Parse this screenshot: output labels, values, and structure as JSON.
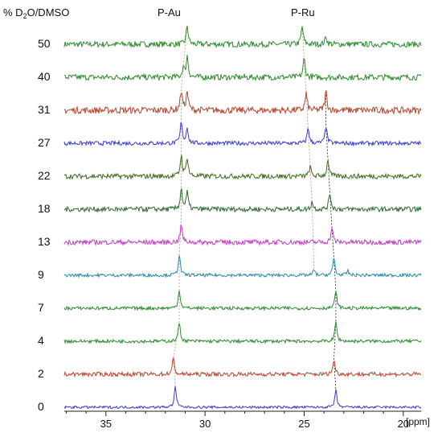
{
  "chart_data": {
    "type": "line",
    "title": "",
    "legend_header": {
      "prefix": "% D",
      "sub": "2",
      "suffix": "O/DMSO"
    },
    "xlabel": "[ppm]",
    "xlim": [
      37.1,
      19.1
    ],
    "x_ticks": [
      35,
      30,
      25,
      20
    ],
    "peak_labels": [
      "P-Au",
      "P-Ru"
    ],
    "series": [
      {
        "name": "50",
        "color": "#2e8b2e",
        "peaks": [
          {
            "ppm": 30.9,
            "h": 0.9
          },
          {
            "ppm": 25.1,
            "h": 0.85
          },
          {
            "ppm": 23.9,
            "h": 0.35
          }
        ],
        "noise": 0.14
      },
      {
        "name": "40",
        "color": "#2e8b2e",
        "peaks": [
          {
            "ppm": 31.1,
            "h": 0.45
          },
          {
            "ppm": 30.9,
            "h": 1.0
          },
          {
            "ppm": 25.0,
            "h": 0.9
          }
        ],
        "noise": 0.14
      },
      {
        "name": "31",
        "color": "#b5472f",
        "peaks": [
          {
            "ppm": 31.2,
            "h": 0.95
          },
          {
            "ppm": 30.9,
            "h": 0.9
          },
          {
            "ppm": 24.9,
            "h": 0.8
          },
          {
            "ppm": 23.9,
            "h": 0.9
          }
        ],
        "noise": 0.16
      },
      {
        "name": "27",
        "color": "#3a3ad0",
        "peaks": [
          {
            "ppm": 31.2,
            "h": 1.0
          },
          {
            "ppm": 30.9,
            "h": 0.75
          },
          {
            "ppm": 24.8,
            "h": 0.75
          },
          {
            "ppm": 23.9,
            "h": 0.85
          }
        ],
        "noise": 0.1
      },
      {
        "name": "22",
        "color": "#3f6b1e",
        "peaks": [
          {
            "ppm": 31.2,
            "h": 1.0
          },
          {
            "ppm": 30.9,
            "h": 0.9
          },
          {
            "ppm": 24.7,
            "h": 0.45
          },
          {
            "ppm": 23.8,
            "h": 0.8
          }
        ],
        "noise": 0.12
      },
      {
        "name": "18",
        "color": "#2f6b2f",
        "peaks": [
          {
            "ppm": 31.2,
            "h": 1.0
          },
          {
            "ppm": 30.9,
            "h": 0.8
          },
          {
            "ppm": 24.6,
            "h": 0.35
          },
          {
            "ppm": 23.7,
            "h": 0.8
          }
        ],
        "noise": 0.12
      },
      {
        "name": "13",
        "color": "#c23cc2",
        "peaks": [
          {
            "ppm": 31.2,
            "h": 0.85
          },
          {
            "ppm": 23.6,
            "h": 0.7
          }
        ],
        "noise": 0.12
      },
      {
        "name": "9",
        "color": "#2a8aa8",
        "peaks": [
          {
            "ppm": 31.3,
            "h": 1.0
          },
          {
            "ppm": 24.5,
            "h": 0.25
          },
          {
            "ppm": 23.5,
            "h": 0.85
          },
          {
            "ppm": 22.8,
            "h": 0.2
          }
        ],
        "noise": 0.08
      },
      {
        "name": "7",
        "color": "#2e8b2e",
        "peaks": [
          {
            "ppm": 31.3,
            "h": 0.9
          },
          {
            "ppm": 23.4,
            "h": 0.85
          }
        ],
        "noise": 0.08
      },
      {
        "name": "4",
        "color": "#2e8b2e",
        "peaks": [
          {
            "ppm": 31.3,
            "h": 0.9
          },
          {
            "ppm": 23.4,
            "h": 0.95
          }
        ],
        "noise": 0.08
      },
      {
        "name": "2",
        "color": "#b5472f",
        "peaks": [
          {
            "ppm": 31.6,
            "h": 0.75
          },
          {
            "ppm": 23.5,
            "h": 0.7
          }
        ],
        "noise": 0.1
      },
      {
        "name": "0",
        "color": "#3a3ad0",
        "peaks": [
          {
            "ppm": 31.5,
            "h": 1.0
          },
          {
            "ppm": 23.4,
            "h": 0.8
          }
        ],
        "noise": 0.06
      }
    ]
  }
}
